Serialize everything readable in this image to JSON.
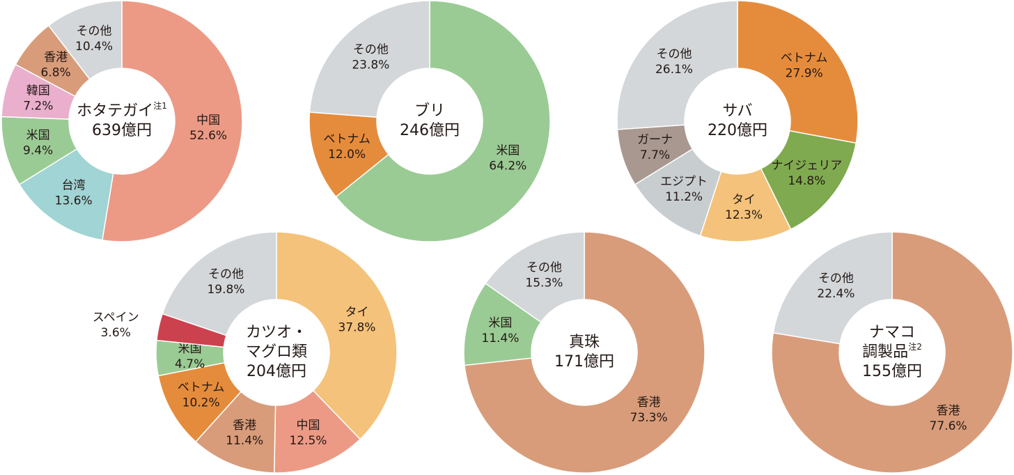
{
  "chart_data": [
    {
      "type": "pie",
      "title": [
        "ホタテガイ"
      ],
      "note": "注1",
      "total": "639億円",
      "categories": [
        "中国",
        "台湾",
        "米国",
        "韓国",
        "香港",
        "その他"
      ],
      "values": [
        52.6,
        13.6,
        9.4,
        7.2,
        6.8,
        10.4
      ],
      "value_labels": [
        "52.6%",
        "13.6%",
        "9.4%",
        "7.2%",
        "6.8%",
        "10.4%"
      ],
      "colors": [
        "#ec9a85",
        "#a1d4d4",
        "#9acb94",
        "#e9afcc",
        "#d89c7a",
        "#d3d7da"
      ]
    },
    {
      "type": "pie",
      "title": [
        "ブリ"
      ],
      "total": "246億円",
      "categories": [
        "米国",
        "ベトナム",
        "その他"
      ],
      "values": [
        64.2,
        12.0,
        23.8
      ],
      "value_labels": [
        "64.2%",
        "12.0%",
        "23.8%"
      ],
      "colors": [
        "#9acb94",
        "#e58c3c",
        "#d3d7da"
      ]
    },
    {
      "type": "pie",
      "title": [
        "サバ"
      ],
      "total": "220億円",
      "categories": [
        "ベトナム",
        "ナイジェリア",
        "タイ",
        "エジプト",
        "ガーナ",
        "その他"
      ],
      "values": [
        27.9,
        14.8,
        12.3,
        11.2,
        7.7,
        26.1
      ],
      "value_labels": [
        "27.9%",
        "14.8%",
        "12.3%",
        "11.2%",
        "7.7%",
        "26.1%"
      ],
      "colors": [
        "#e58c3c",
        "#7faa4f",
        "#f4c27a",
        "#c8cdd0",
        "#a89890",
        "#d3d7da"
      ]
    },
    {
      "type": "pie",
      "title": [
        "カツオ・",
        "マグロ類"
      ],
      "total": "204億円",
      "categories": [
        "タイ",
        "中国",
        "香港",
        "ベトナム",
        "米国",
        "スペイン",
        "その他"
      ],
      "values": [
        37.8,
        12.5,
        11.4,
        10.2,
        4.7,
        3.6,
        19.8
      ],
      "value_labels": [
        "37.8%",
        "12.5%",
        "11.4%",
        "10.2%",
        "4.7%",
        "3.6%",
        "19.8%"
      ],
      "colors": [
        "#f4c27a",
        "#ec9a85",
        "#d89c7a",
        "#e58c3c",
        "#9acb94",
        "#cc414e",
        "#d3d7da"
      ]
    },
    {
      "type": "pie",
      "title": [
        "真珠"
      ],
      "total": "171億円",
      "categories": [
        "香港",
        "米国",
        "その他"
      ],
      "values": [
        73.3,
        11.4,
        15.3
      ],
      "value_labels": [
        "73.3%",
        "11.4%",
        "15.3%"
      ],
      "colors": [
        "#d89c7a",
        "#9acb94",
        "#d3d7da"
      ]
    },
    {
      "type": "pie",
      "title": [
        "ナマコ",
        "調製品"
      ],
      "note": "注2",
      "total": "155億円",
      "categories": [
        "香港",
        "その他"
      ],
      "values": [
        77.6,
        22.4
      ],
      "value_labels": [
        "77.6%",
        "22.4%"
      ],
      "colors": [
        "#d89c7a",
        "#d3d7da"
      ]
    }
  ]
}
